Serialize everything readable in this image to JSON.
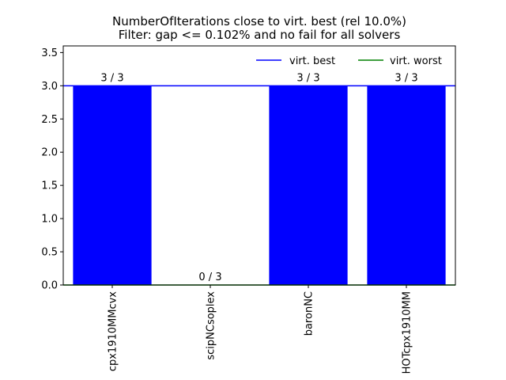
{
  "chart_data": {
    "type": "bar",
    "title": "NumberOfIterations close to virt. best (rel 10.0%)",
    "subtitle": "Filter: gap <= 0.102% and no fail for all solvers",
    "categories": [
      "cpx1910MMcvx",
      "scipNCsoplex",
      "baronNC",
      "HOTcpx1910MM"
    ],
    "values": [
      3,
      0,
      3,
      3
    ],
    "bar_labels": [
      "3 / 3",
      "0 / 3",
      "3 / 3",
      "3 / 3"
    ],
    "bar_color": "#0000ff",
    "ylim": [
      0,
      3.6
    ],
    "yticks": [
      0.0,
      0.5,
      1.0,
      1.5,
      2.0,
      2.5,
      3.0,
      3.5
    ],
    "ytick_labels": [
      "0.0",
      "0.5",
      "1.0",
      "1.5",
      "2.0",
      "2.5",
      "3.0",
      "3.5"
    ],
    "reference_lines": [
      {
        "name": "virt. best",
        "value": 3,
        "color": "#0000ff"
      },
      {
        "name": "virt. worst",
        "value": 0,
        "color": "#008000"
      }
    ],
    "legend_position": "top-right",
    "grid": false
  }
}
